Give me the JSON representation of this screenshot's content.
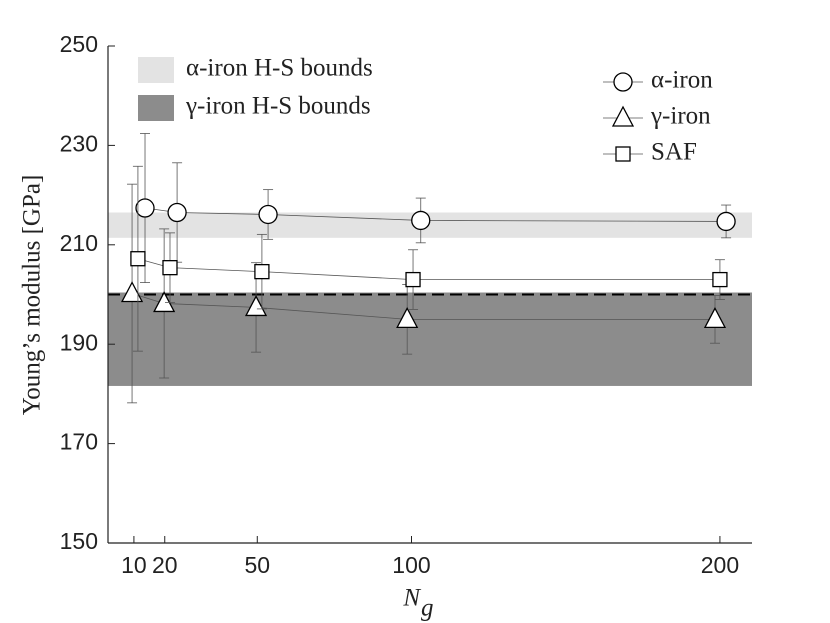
{
  "chart_data": {
    "type": "line",
    "ylabel": "Young’s modulus [GPa]",
    "xlabel": {
      "main": "N",
      "sub": "g"
    },
    "xlim": [
      1.6,
      210.4
    ],
    "ylim": [
      150,
      250
    ],
    "xticks": [
      10,
      20,
      50,
      100,
      200
    ],
    "yticks": [
      150,
      170,
      190,
      210,
      230,
      250
    ],
    "bands": [
      {
        "name": "α-iron H-S bounds",
        "range": [
          211.4,
          216.5
        ],
        "color": "#e3e3e3"
      },
      {
        "name": "γ-iron H-S bounds",
        "range": [
          181.6,
          200.4
        ],
        "color": "#8c8c8c"
      }
    ],
    "reference_line": 200,
    "series": [
      {
        "name": "α-iron",
        "marker": "circle",
        "color": "#555555",
        "x": [
          13.6,
          24,
          53.5,
          103,
          202
        ],
        "values": [
          217.4,
          216.5,
          216.1,
          214.9,
          214.7
        ],
        "errors": [
          15,
          10,
          5,
          4.5,
          3.3
        ]
      },
      {
        "name": "γ-iron",
        "marker": "triangle",
        "color": "#555555",
        "x": [
          9.4,
          19.8,
          49.6,
          98.6,
          198.4
        ],
        "values": [
          200.2,
          198.2,
          197.4,
          195,
          195
        ],
        "errors": [
          22,
          15,
          9,
          7,
          4.8
        ]
      },
      {
        "name": "SAF",
        "marker": "square",
        "color": "#555555",
        "x": [
          11.3,
          21.7,
          51.5,
          100.5,
          200
        ],
        "values": [
          207.2,
          205.4,
          204.6,
          203,
          203
        ],
        "errors": [
          18.6,
          7,
          7.5,
          6,
          4
        ]
      }
    ]
  }
}
